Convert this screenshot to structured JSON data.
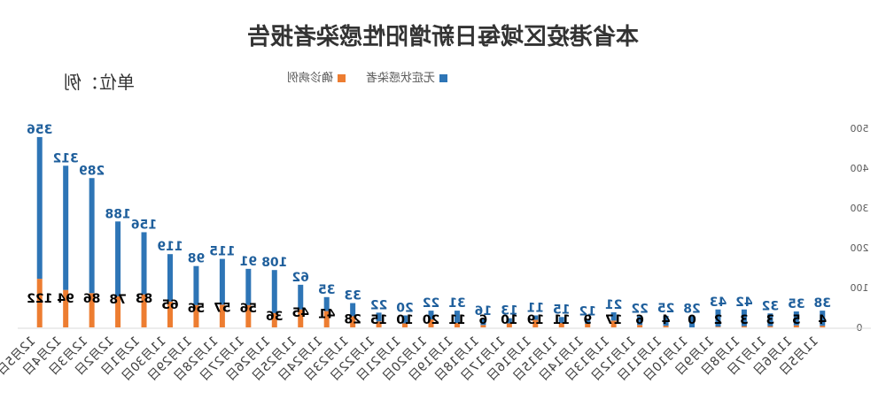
{
  "chart_data": {
    "type": "bar",
    "stacked": true,
    "title": "本省港疫区域每日新增阳性感染者报告",
    "unit_label": "单位：例",
    "legend_position": "top",
    "categories": [
      "12月5日",
      "12月4日",
      "12月3日",
      "12月2日",
      "12月1日",
      "11月30日",
      "11月29日",
      "11月28日",
      "11月27日",
      "11月26日",
      "11月25日",
      "11月24日",
      "11月23日",
      "11月22日",
      "11月21日",
      "11月20日",
      "11月19日",
      "11月18日",
      "11月17日",
      "11月16日",
      "11月15日",
      "11月14日",
      "11月13日",
      "11月12日",
      "11月11日",
      "11月10日",
      "11月9日",
      "11月8日",
      "11月7日",
      "11月6日",
      "11月5日"
    ],
    "series": [
      {
        "name": "无症状感染者",
        "color": "#2e75b6",
        "values": [
          356,
          312,
          289,
          188,
          156,
          119,
          98,
          115,
          91,
          108,
          62,
          35,
          33,
          22,
          20,
          22,
          31,
          16,
          13,
          11,
          15,
          12,
          21,
          22,
          25,
          28,
          43,
          42,
          32,
          35,
          38
        ]
      },
      {
        "name": "确诊病例",
        "color": "#ed7d31",
        "values": [
          122,
          94,
          86,
          78,
          83,
          65,
          56,
          57,
          56,
          36,
          45,
          41,
          28,
          15,
          10,
          20,
          11,
          6,
          10,
          19,
          11,
          9,
          17,
          6,
          4,
          0,
          2,
          3,
          3,
          5,
          4
        ]
      }
    ],
    "y_axis": {
      "position": "right",
      "min": 0,
      "max": 500,
      "ticks": [
        0,
        100,
        200,
        300,
        400,
        500
      ]
    },
    "grid": false,
    "mirrored": true,
    "label_color_top": "#1f5f9c",
    "label_color_bottom": "#000000"
  }
}
